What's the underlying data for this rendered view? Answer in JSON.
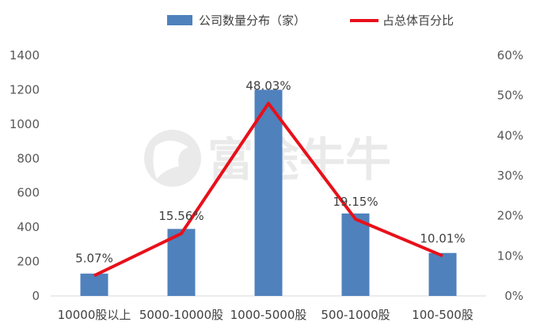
{
  "watermark": "富途牛牛",
  "chart_data": {
    "type": "bar",
    "categories": [
      "10000股以上",
      "5000-10000股",
      "1000-5000股",
      "500-1000股",
      "100-500股"
    ],
    "series": [
      {
        "name": "公司数量分布（家）",
        "type": "bar",
        "axis": "left",
        "color": "#4f81bd",
        "values": [
          130,
          390,
          1200,
          480,
          250
        ]
      },
      {
        "name": "占总体百分比",
        "type": "line",
        "axis": "right",
        "color": "#e8101a",
        "values": [
          5.07,
          15.56,
          48.03,
          19.15,
          10.01
        ],
        "labels": [
          "5.07%",
          "15.56%",
          "48.03%",
          "19.15%",
          "10.01%"
        ]
      }
    ],
    "ylim": [
      0,
      1400
    ],
    "yticks": [
      "0",
      "200",
      "400",
      "600",
      "800",
      "1000",
      "1200",
      "1400"
    ],
    "y2lim": [
      0,
      60
    ],
    "y2ticks": [
      "0%",
      "10%",
      "20%",
      "30%",
      "40%",
      "50%",
      "60%"
    ],
    "legend_position": "top",
    "grid": false
  }
}
